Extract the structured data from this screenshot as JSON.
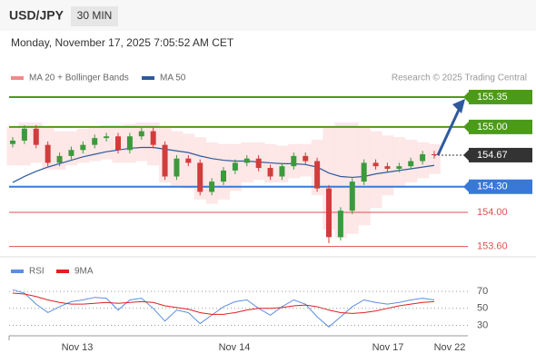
{
  "chart_data": {
    "type": "candlestick",
    "title": "USD/JPY",
    "timeframe": "30 MIN",
    "subtitle": "Monday, November 17, 2025 7:05:52 AM CET",
    "legend": [
      "MA 20 + Bollinger Bands",
      "MA 50"
    ],
    "legend_colors": [
      "#f08a8a",
      "#2e5a9c"
    ],
    "credit": "Research © 2025 Trading Central",
    "x_labels": [
      "Nov 13",
      "Nov 14",
      "Nov 17",
      "Nov 22"
    ],
    "ylim": [
      153.49,
      155.53
    ],
    "open": [
      154.8,
      154.84,
      154.98,
      154.79,
      154.58,
      154.66,
      154.73,
      154.79,
      154.87,
      154.89,
      154.73,
      154.89,
      154.95,
      154.79,
      154.42,
      154.63,
      154.58,
      154.24,
      154.36,
      154.49,
      154.58,
      154.63,
      154.52,
      154.42,
      154.54,
      154.66,
      154.6,
      154.28,
      153.71,
      154.02,
      154.36,
      154.58,
      154.54,
      154.51,
      154.54,
      154.6,
      154.68
    ],
    "high": [
      154.88,
      155.02,
      155.02,
      154.83,
      154.7,
      154.77,
      154.83,
      154.91,
      154.93,
      154.93,
      154.93,
      154.99,
      154.99,
      154.83,
      154.67,
      154.67,
      154.62,
      154.4,
      154.53,
      154.62,
      154.67,
      154.67,
      154.56,
      154.58,
      154.7,
      154.7,
      154.64,
      154.32,
      154.06,
      154.4,
      154.62,
      154.62,
      154.58,
      154.58,
      154.64,
      154.72,
      154.72
    ],
    "low": [
      154.76,
      154.8,
      154.75,
      154.54,
      154.54,
      154.62,
      154.69,
      154.75,
      154.83,
      154.69,
      154.69,
      154.85,
      154.75,
      154.38,
      154.38,
      154.54,
      154.2,
      154.2,
      154.32,
      154.45,
      154.54,
      154.48,
      154.38,
      154.38,
      154.5,
      154.56,
      154.24,
      153.64,
      153.67,
      153.98,
      154.32,
      154.5,
      154.47,
      154.47,
      154.5,
      154.56,
      154.63
    ],
    "close": [
      154.84,
      154.98,
      154.79,
      154.58,
      154.66,
      154.73,
      154.79,
      154.87,
      154.89,
      154.73,
      154.89,
      154.95,
      154.79,
      154.42,
      154.63,
      154.58,
      154.24,
      154.36,
      154.49,
      154.58,
      154.63,
      154.52,
      154.42,
      154.54,
      154.66,
      154.6,
      154.28,
      153.71,
      154.02,
      154.36,
      154.58,
      154.54,
      154.51,
      154.54,
      154.6,
      154.68,
      154.67
    ],
    "ma50": [
      154.35,
      154.42,
      154.48,
      154.53,
      154.57,
      154.61,
      154.65,
      154.68,
      154.71,
      154.73,
      154.75,
      154.76,
      154.76,
      154.74,
      154.72,
      154.7,
      154.66,
      154.63,
      154.61,
      154.6,
      154.6,
      154.59,
      154.58,
      154.57,
      154.57,
      154.56,
      154.53,
      154.46,
      154.42,
      154.41,
      154.42,
      154.45,
      154.47,
      154.49,
      154.51,
      154.53,
      154.55
    ],
    "bb_upper": [
      155.0,
      155.05,
      155.05,
      155.0,
      154.95,
      154.95,
      154.98,
      155.0,
      155.02,
      155.02,
      155.03,
      155.05,
      155.05,
      155.0,
      154.95,
      154.92,
      154.88,
      154.82,
      154.8,
      154.8,
      154.82,
      154.82,
      154.8,
      154.78,
      154.8,
      154.8,
      154.85,
      155.0,
      155.05,
      155.05,
      155.0,
      154.95,
      154.9,
      154.88,
      154.85,
      154.82,
      154.8
    ],
    "bb_lower": [
      154.55,
      154.55,
      154.58,
      154.5,
      154.5,
      154.55,
      154.58,
      154.6,
      154.62,
      154.58,
      154.58,
      154.6,
      154.55,
      154.35,
      154.3,
      154.28,
      154.15,
      154.1,
      154.15,
      154.25,
      154.35,
      154.38,
      154.35,
      154.35,
      154.4,
      154.42,
      154.2,
      153.8,
      153.7,
      153.75,
      153.85,
      154.05,
      154.2,
      154.3,
      154.35,
      154.4,
      154.45
    ],
    "levels": [
      {
        "value": 155.35,
        "color": "#4c9a1a",
        "box": true
      },
      {
        "value": 155,
        "label": "155.00",
        "color": "#4c9a1a",
        "box": true
      },
      {
        "value": 154.67,
        "color": "#333333",
        "box": true
      },
      {
        "value": 154.3,
        "label": "154.30",
        "color": "#3a78d8",
        "box": true
      },
      {
        "value": 154,
        "label": "154.00",
        "color": "#e05050",
        "box": false
      },
      {
        "value": 153.6,
        "label": "153.60",
        "color": "#e05050",
        "box": false
      }
    ],
    "rsi": {
      "legend": [
        "RSI",
        "9MA"
      ],
      "colors": [
        "#5b8ee0",
        "#e02020"
      ],
      "ylim": [
        9,
        82
      ],
      "yticks": [
        30,
        50,
        70
      ],
      "values": [
        72,
        68,
        55,
        45,
        52,
        58,
        60,
        63,
        62,
        48,
        60,
        62,
        50,
        35,
        48,
        45,
        32,
        42,
        52,
        58,
        60,
        50,
        42,
        52,
        60,
        55,
        40,
        28,
        40,
        52,
        60,
        57,
        55,
        57,
        60,
        62,
        60
      ],
      "ma": [
        68,
        67,
        64,
        60,
        57,
        55,
        55,
        56,
        57,
        56,
        57,
        58,
        57,
        53,
        51,
        49,
        45,
        43,
        43,
        45,
        48,
        50,
        50,
        51,
        53,
        54,
        52,
        48,
        45,
        44,
        45,
        47,
        50,
        53,
        55,
        57,
        58
      ]
    }
  }
}
